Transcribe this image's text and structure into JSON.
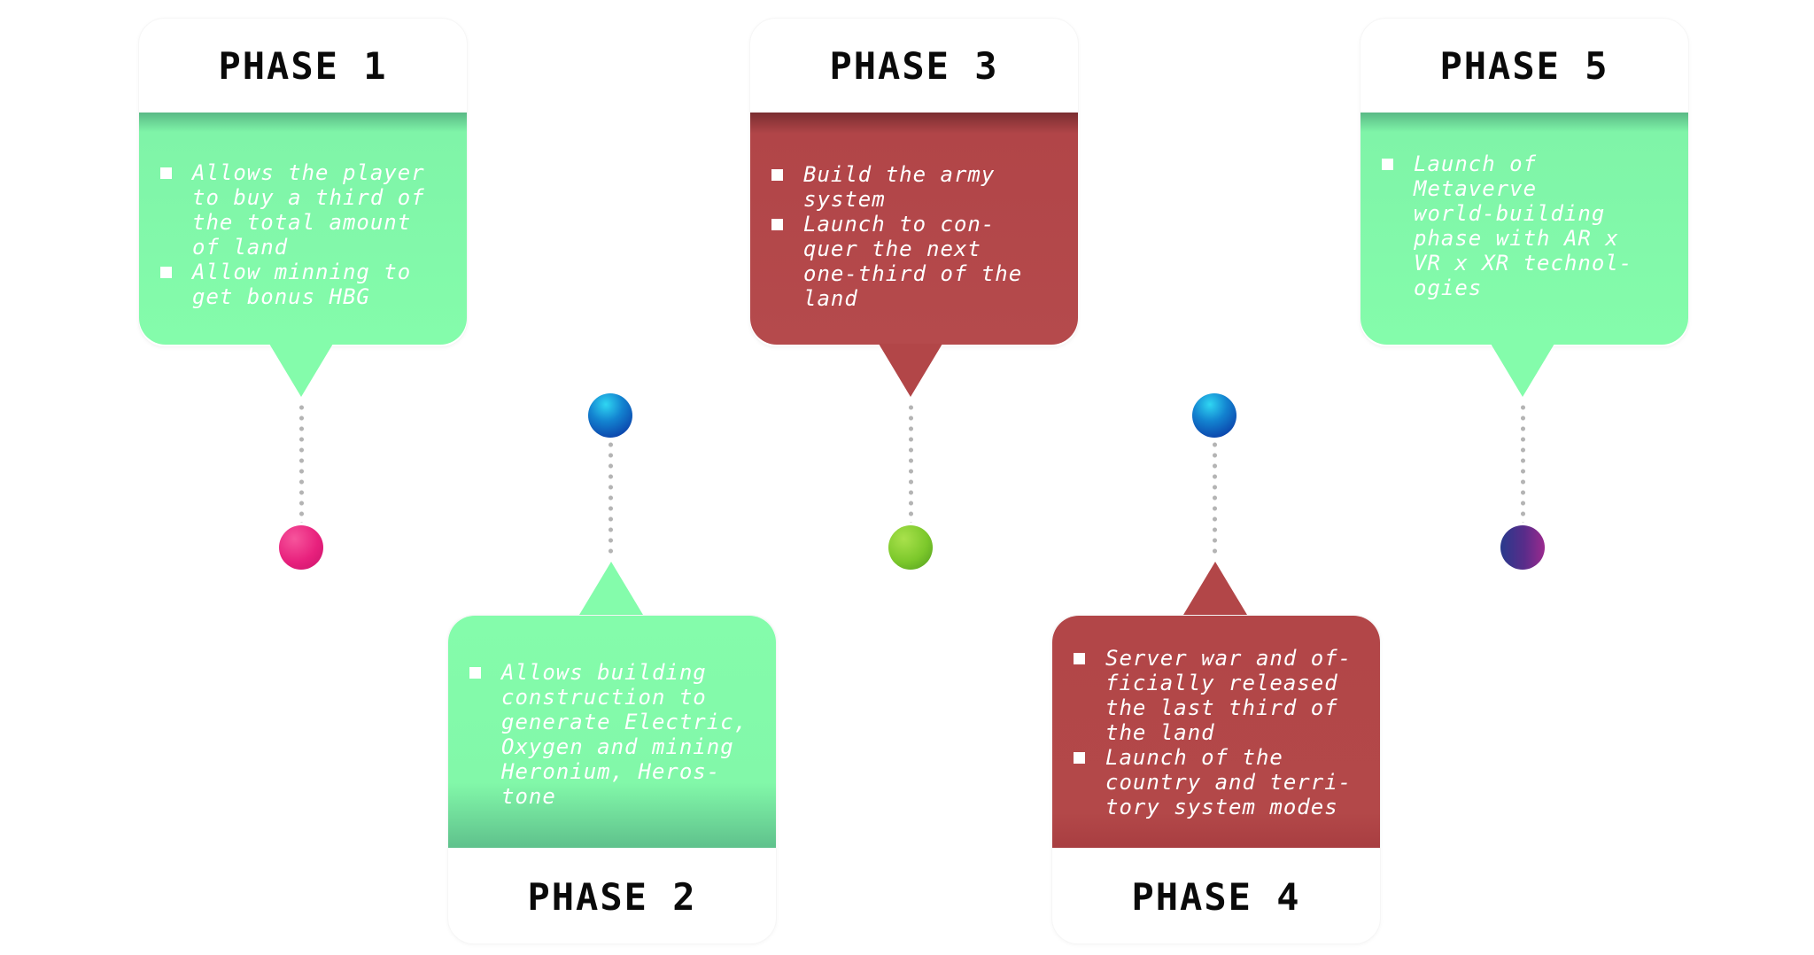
{
  "colors": {
    "green": "#84fcab",
    "red": "#b24648",
    "title": "#0a0a0a",
    "connector": "#b4b4b4",
    "node_pink": "#e8217d",
    "node_lime": "#7cc82b",
    "node_purple": "#5a2c8a",
    "node_blue": "#0b3fa8"
  },
  "phases": [
    {
      "title": "PHASE 1",
      "color": "green",
      "items": [
        "Allows the player\nto buy a third of\nthe total amount\nof land",
        "Allow minning to\nget bonus HBG"
      ]
    },
    {
      "title": "PHASE 2",
      "color": "green",
      "items": [
        "Allows building\nconstruction to\ngenerate Electric,\nOxygen and mining\nHeronium, Heros-\ntone"
      ]
    },
    {
      "title": "PHASE 3",
      "color": "red",
      "items": [
        "Build the army\nsystem",
        "Launch to con-\nquer the next\none-third of the\nland"
      ]
    },
    {
      "title": "PHASE 4",
      "color": "red",
      "items": [
        "Server war and of-\nficially released\nthe last third of\nthe land",
        "Launch of the\ncountry and terri-\ntory system modes"
      ]
    },
    {
      "title": "PHASE 5",
      "color": "green",
      "items": [
        "Launch of\nMetaverve\nworld-building\nphase with AR x\nVR x XR technol-\nogies"
      ]
    }
  ],
  "nodes": [
    {
      "name": "phase-1-node",
      "style": "pink-gradient"
    },
    {
      "name": "phase-2-node",
      "style": "blue-gradient"
    },
    {
      "name": "phase-3-node",
      "style": "lime-gradient"
    },
    {
      "name": "phase-4-node",
      "style": "blue-gradient"
    },
    {
      "name": "phase-5-node",
      "style": "purple-gradient"
    }
  ]
}
